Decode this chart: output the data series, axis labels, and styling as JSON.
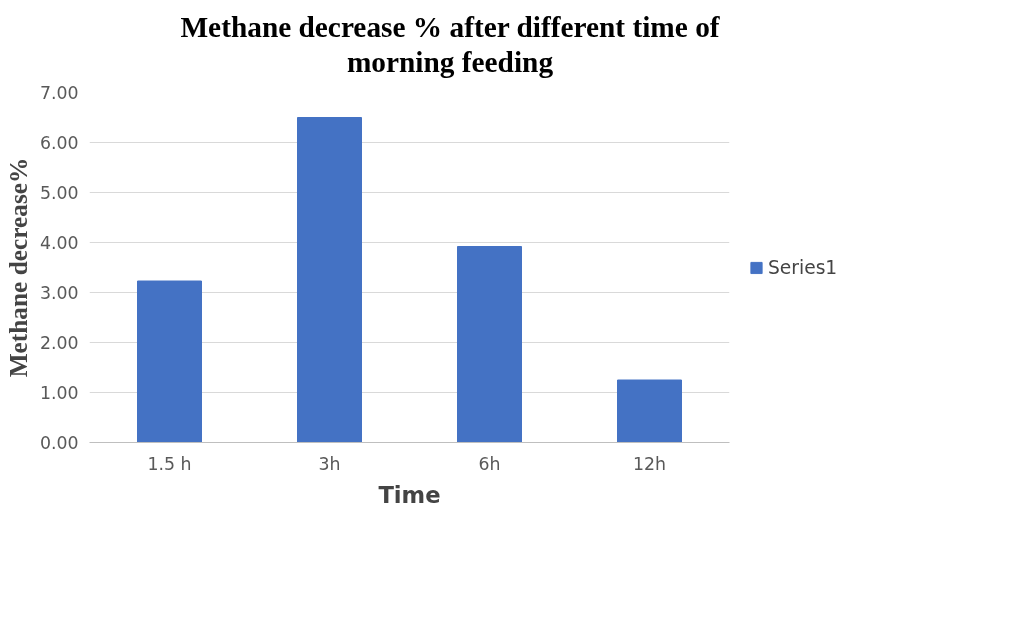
{
  "chart_data": {
    "type": "bar",
    "title": "Methane decrease % after different time of morning feeding",
    "xlabel": "Time",
    "ylabel": "Methane decrease%",
    "categories": [
      "1.5 h",
      "3h",
      "6h",
      "12h"
    ],
    "series": [
      {
        "name": "Series1",
        "color": "#4472c4",
        "values": [
          3.23,
          6.5,
          3.92,
          1.25
        ]
      }
    ],
    "ylim": [
      0,
      7
    ],
    "yticks": [
      {
        "value": 0,
        "label": "0.00"
      },
      {
        "value": 1,
        "label": "1.00"
      },
      {
        "value": 2,
        "label": "2.00"
      },
      {
        "value": 3,
        "label": "3.00"
      },
      {
        "value": 4,
        "label": "4.00"
      },
      {
        "value": 5,
        "label": "5.00"
      },
      {
        "value": 6,
        "label": "6.00"
      },
      {
        "value": 7,
        "label": "7.00"
      }
    ],
    "grid": "y",
    "legend": "right"
  }
}
